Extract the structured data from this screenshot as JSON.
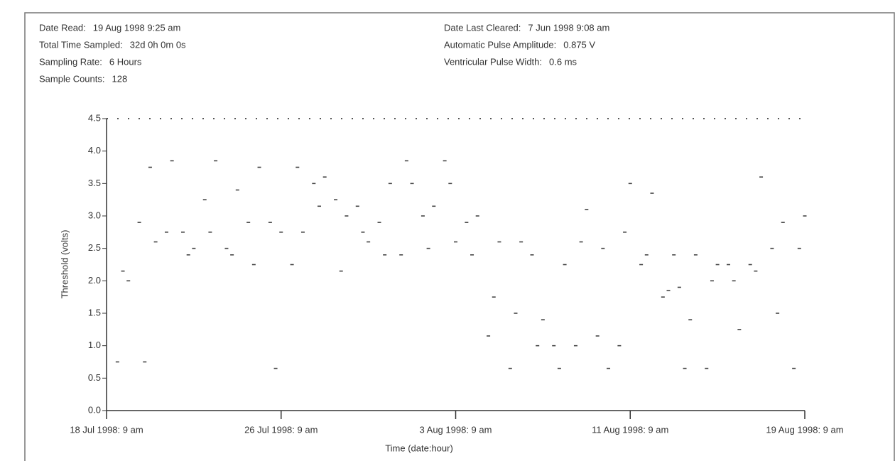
{
  "header": {
    "left": [
      {
        "label": "Date Read:",
        "value": "19 Aug 1998 9:25 am"
      },
      {
        "label": "Total Time Sampled:",
        "value": "32d 0h 0m 0s"
      },
      {
        "label": "Sampling Rate:",
        "value": "6 Hours"
      },
      {
        "label": "Sample Counts:",
        "value": "128"
      }
    ],
    "right": [
      {
        "label": "Date Last Cleared:",
        "value": "7 Jun 1998 9:08 am"
      },
      {
        "label": "Automatic Pulse Amplitude:",
        "value": "0.875 V"
      },
      {
        "label": "Ventricular Pulse Width:",
        "value": "0.6 ms"
      }
    ]
  },
  "chart_data": {
    "type": "scatter",
    "x_label": "Time (date:hour)",
    "y_label": "Threshold (volts)",
    "color": "#444444",
    "xlim": [
      0,
      768
    ],
    "xticks": [
      {
        "value": 0,
        "label": "18 Jul 1998: 9 am"
      },
      {
        "value": 192,
        "label": "26 Jul 1998: 9 am"
      },
      {
        "value": 384,
        "label": "3 Aug 1998: 9 am"
      },
      {
        "value": 576,
        "label": "11 Aug 1998: 9 am"
      },
      {
        "value": 768,
        "label": "19 Aug 1998: 9 am"
      }
    ],
    "ylim": [
      0,
      4.5
    ],
    "yticks": [
      {
        "value": 0,
        "label": "0.0"
      },
      0.5,
      {
        "value": 1,
        "label": "1.0"
      },
      1.5,
      {
        "value": 2,
        "label": "2.0"
      },
      2.5,
      {
        "value": 3,
        "label": "3.0"
      },
      3.5,
      {
        "value": 4,
        "label": "4.0"
      },
      4.5
    ],
    "x": [
      12,
      18,
      24,
      36,
      42,
      48,
      54,
      66,
      72,
      84,
      90,
      96,
      108,
      114,
      120,
      132,
      138,
      144,
      156,
      162,
      168,
      180,
      186,
      192,
      204,
      210,
      216,
      228,
      234,
      240,
      252,
      258,
      264,
      276,
      282,
      288,
      300,
      306,
      312,
      324,
      330,
      336,
      348,
      354,
      360,
      372,
      378,
      384,
      396,
      402,
      408,
      420,
      426,
      432,
      444,
      450,
      456,
      468,
      474,
      480,
      492,
      498,
      504,
      516,
      522,
      528,
      540,
      546,
      552,
      564,
      570,
      576,
      588,
      594,
      600,
      612,
      618,
      624,
      630,
      636,
      642,
      648,
      660,
      666,
      672,
      684,
      690,
      696,
      708,
      714,
      720,
      732,
      738,
      744,
      756,
      762,
      768
    ],
    "values": [
      0.75,
      2.15,
      2.0,
      2.9,
      0.75,
      3.75,
      2.6,
      2.75,
      3.85,
      2.75,
      2.4,
      2.5,
      3.25,
      2.75,
      3.85,
      2.5,
      2.4,
      3.4,
      2.9,
      2.25,
      3.75,
      2.9,
      0.65,
      2.75,
      2.25,
      3.75,
      2.75,
      3.5,
      3.15,
      3.6,
      3.25,
      2.15,
      3.0,
      3.15,
      2.75,
      2.6,
      2.9,
      2.4,
      3.5,
      2.4,
      3.85,
      3.5,
      3.0,
      2.5,
      3.15,
      3.85,
      3.5,
      2.6,
      2.9,
      2.4,
      3.0,
      1.15,
      1.75,
      2.6,
      0.65,
      1.5,
      2.6,
      2.4,
      1.0,
      1.4,
      1.0,
      0.65,
      2.25,
      1.0,
      2.6,
      3.1,
      1.15,
      2.5,
      0.65,
      1.0,
      2.75,
      3.5,
      2.25,
      2.4,
      3.35,
      1.75,
      1.85,
      2.4,
      1.9,
      0.65,
      1.4,
      2.4,
      0.65,
      2.0,
      2.25,
      2.25,
      2.0,
      1.25,
      2.25,
      2.15,
      3.6,
      2.5,
      1.5,
      2.9,
      0.65,
      2.5,
      3.0
    ]
  }
}
